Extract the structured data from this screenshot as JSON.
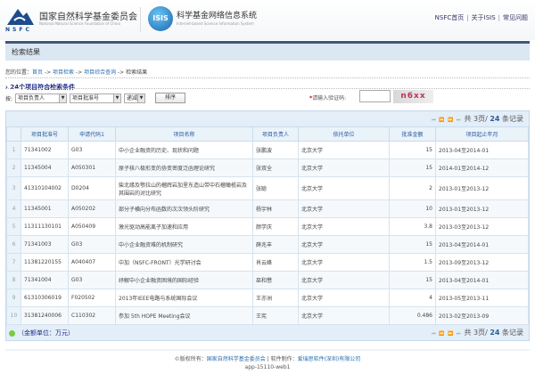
{
  "header": {
    "org_name": "国家自然科学基金委员会",
    "org_name_en": "National Natural Science Foundation of China",
    "org_logo_text": "NSFC",
    "isis_logo_text": "ISIS",
    "system_name": "科学基金网络信息系统",
    "system_name_en": "Internet-based Science Information System",
    "links": [
      "NSFC首页",
      "关于ISIS",
      "常见问题"
    ]
  },
  "page_title": "检索结果",
  "breadcrumb": {
    "prefix": "您的位置：",
    "items": [
      "首页",
      "项目检索",
      "项目综合查询"
    ],
    "current": "检索结果",
    "sep": " -> "
  },
  "result_count": "24个项目符合检索条件",
  "sort": {
    "label": "按:",
    "field1": "项目负责人",
    "field2": "项目批准号",
    "order": "递减",
    "button": "排序"
  },
  "captcha": {
    "required_mark": "*",
    "label": "请输入验证码:",
    "value": "",
    "image_text": "n6xx"
  },
  "pager": {
    "nav": "⏮ ⏪ ⏩ ⏭",
    "text_prefix": "共 3页/ ",
    "total": "24",
    "text_suffix": " 条记录"
  },
  "table": {
    "columns": [
      "",
      "项目批准号",
      "申请代码1",
      "项目名称",
      "项目负责人",
      "依托单位",
      "批准金额",
      "项目起止年月"
    ],
    "rows": [
      [
        "1",
        "71341002",
        "G03",
        "中小企业融资的历史、现状和问题",
        "张鹏波",
        "北京大学",
        "15",
        "2013-04至2014-01"
      ],
      [
        "2",
        "11345004",
        "A050301",
        "原子核八极形变的协变密度泛函理论研究",
        "张双全",
        "北京大学",
        "15",
        "2014-01至2014-12"
      ],
      [
        "3",
        "41310104002",
        "D0204",
        "柴北缘及鄂拉山的榴辉岩加里东造山带中石榴橄榄岩及其围岩的对比研究",
        "张聪",
        "北京大学",
        "2",
        "2013-01至2013-12"
      ],
      [
        "4",
        "11345001",
        "A050202",
        "部分子横向分布函数的次次领头阶研究",
        "杨宇林",
        "北京大学",
        "10",
        "2013-01至2013-12"
      ],
      [
        "5",
        "11311130101",
        "A050409",
        "激光驱动高能离子加速和应用",
        "颜学庆",
        "北京大学",
        "3.8",
        "2013-03至2013-12"
      ],
      [
        "6",
        "71341003",
        "G03",
        "中小企业融资难的机制研究",
        "薛兆丰",
        "北京大学",
        "15",
        "2013-04至2014-01"
      ],
      [
        "7",
        "11381220155",
        "A040407",
        "中加（NSFC-FRONT）光学研讨会",
        "肖云峰",
        "北京大学",
        "1.5",
        "2013-09至2013-12"
      ],
      [
        "8",
        "71341004",
        "G03",
        "纾解中小企业融资困境的国际经验",
        "巫和懋",
        "北京大学",
        "15",
        "2013-04至2014-01"
      ],
      [
        "9",
        "61310306019",
        "F020502",
        "2013年IEEE电路与系统国际会议",
        "王亦洲",
        "北京大学",
        "4",
        "2013-05至2013-11"
      ],
      [
        "10",
        "31381240006",
        "C110302",
        "参加 5th HOPE Meeting会议",
        "王宪",
        "北京大学",
        "0.486",
        "2013-02至2013-09"
      ]
    ]
  },
  "unit_note": "（金额单位：万元）",
  "footer": {
    "copyright_prefix": "©版权所有：",
    "copyright_org": "国家自然科学基金委员会",
    "sep": " | ",
    "maker_prefix": "软件制作：",
    "maker": "爱瑞思软件(深圳)有限公司",
    "server": "app-15110-web1"
  }
}
